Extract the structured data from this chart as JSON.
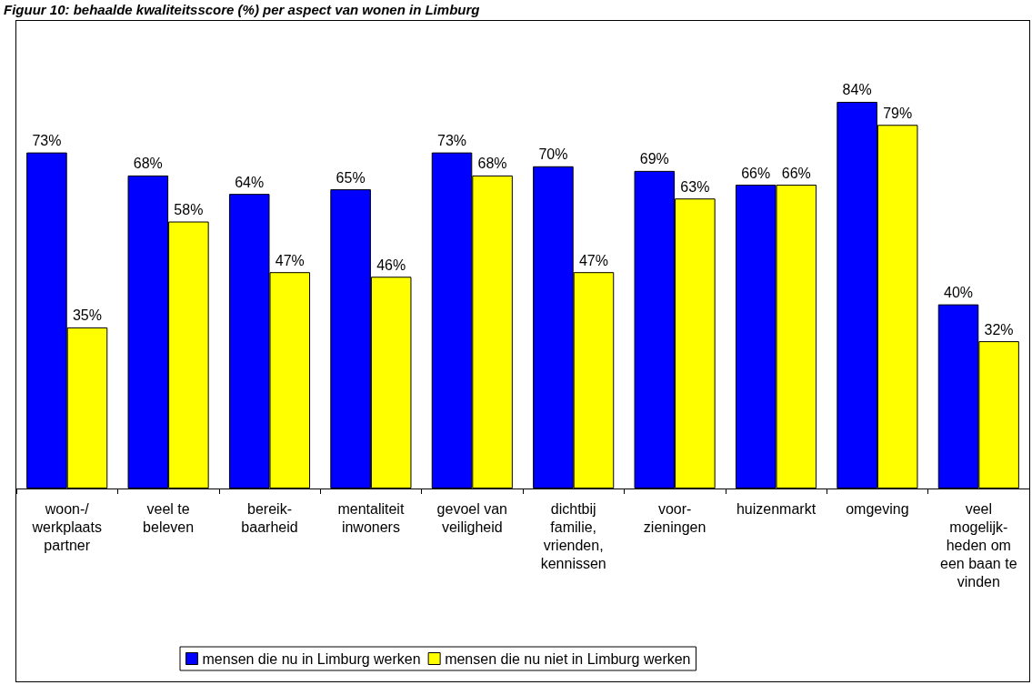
{
  "chart_data": {
    "type": "bar",
    "title": "Figuur 10: behaalde kwaliteitsscore (%) per aspect van wonen in Limburg",
    "categories": [
      "woon-/\nwerkplaats\npartner",
      "veel te\nbeleven",
      "bereik-\nbaarheid",
      "mentaliteit\ninwoners",
      "gevoel van\nveiligheid",
      "dichtbij\nfamilie,\nvrienden,\nkennissen",
      "voor-\nzieningen",
      "huizenmarkt",
      "omgeving",
      "veel\nmogelijk-\nheden om\neen baan te\nvinden"
    ],
    "series": [
      {
        "name": "mensen die nu in Limburg werken",
        "color": "#0000ff",
        "values": [
          73,
          68,
          64,
          65,
          73,
          70,
          69,
          66,
          84,
          40
        ],
        "value_labels": [
          "73%",
          "68%",
          "64%",
          "65%",
          "73%",
          "70%",
          "69%",
          "66%",
          "84%",
          "40%"
        ]
      },
      {
        "name": "mensen die nu niet in Limburg werken",
        "color": "#ffff00",
        "values": [
          35,
          58,
          47,
          46,
          68,
          47,
          63,
          66,
          79,
          32
        ],
        "value_labels": [
          "35%",
          "58%",
          "47%",
          "46%",
          "68%",
          "47%",
          "63%",
          "66%",
          "79%",
          "32%"
        ]
      }
    ],
    "legend": "bottom"
  }
}
